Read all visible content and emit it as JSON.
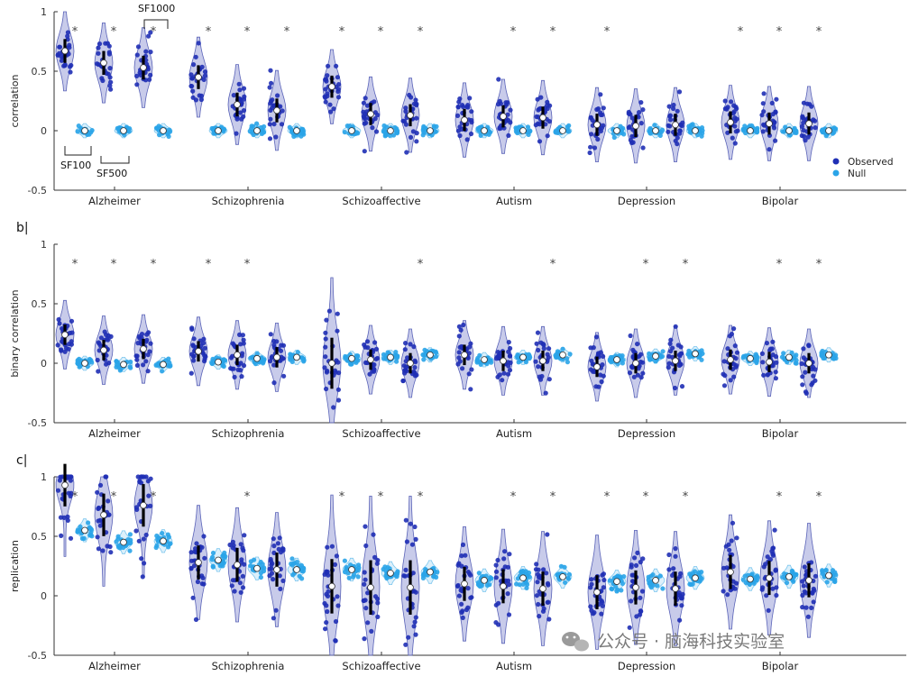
{
  "colors": {
    "observed": "#1f2fb5",
    "null": "#2aa4e8",
    "violin": "#9aa0d8",
    "axis": "#333333"
  },
  "watermark": {
    "text": "公众号 · 脑海科技实验室",
    "icon": "wechat-icon"
  },
  "chart_data": [
    {
      "panel": "a",
      "panel_label": "",
      "type": "violin",
      "ylabel": "correlation",
      "ylim": [
        -0.5,
        1
      ],
      "yticks": [
        "-0.5",
        "0",
        "0.5",
        "1"
      ],
      "categories": [
        "Alzheimer",
        "Schizophrenia",
        "Schizoaffective",
        "Autism",
        "Depression",
        "Bipolar"
      ],
      "legend": {
        "position": "right",
        "entries": [
          {
            "name": "Observed",
            "color": "#1f2fb5"
          },
          {
            "name": "Null",
            "color": "#2aa4e8"
          }
        ]
      },
      "annotations": {
        "sf100": "SF100",
        "sf500": "SF500",
        "sf1000": "SF1000"
      },
      "series": [
        {
          "name": "Observed",
          "values": [
            [
              0.67,
              0.57,
              0.53
            ],
            [
              0.45,
              0.22,
              0.17
            ],
            [
              0.37,
              0.14,
              0.13
            ],
            [
              0.09,
              0.12,
              0.11
            ],
            [
              0.05,
              0.04,
              0.05
            ],
            [
              0.07,
              0.06,
              0.06
            ]
          ]
        },
        {
          "name": "Null",
          "values": [
            [
              0.0,
              0.0,
              0.0
            ],
            [
              0.0,
              0.0,
              0.0
            ],
            [
              0.0,
              0.0,
              0.0
            ],
            [
              0.0,
              0.0,
              0.0
            ],
            [
              0.0,
              0.0,
              0.0
            ],
            [
              0.0,
              0.0,
              0.0
            ]
          ]
        }
      ],
      "significant": [
        [
          true,
          true,
          true
        ],
        [
          true,
          true,
          true
        ],
        [
          true,
          true,
          true
        ],
        [
          false,
          true,
          true
        ],
        [
          true,
          false,
          false
        ],
        [
          true,
          true,
          true
        ]
      ],
      "star_symbol": "*"
    },
    {
      "panel": "b",
      "panel_label": "b|",
      "type": "violin",
      "ylabel": "binary correlation",
      "ylim": [
        -0.5,
        1
      ],
      "yticks": [
        "-0.5",
        "0",
        "0.5",
        "1"
      ],
      "categories": [
        "Alzheimer",
        "Schizophrenia",
        "Schizoaffective",
        "Autism",
        "Depression",
        "Bipolar"
      ],
      "series": [
        {
          "name": "Observed",
          "values": [
            [
              0.24,
              0.11,
              0.12
            ],
            [
              0.1,
              0.07,
              0.05
            ],
            [
              0.0,
              0.03,
              0.0
            ],
            [
              0.07,
              0.02,
              0.02
            ],
            [
              -0.03,
              0.0,
              0.02
            ],
            [
              0.03,
              0.01,
              0.0
            ]
          ]
        },
        {
          "name": "Null",
          "values": [
            [
              0.0,
              -0.01,
              -0.01
            ],
            [
              0.01,
              0.04,
              0.05
            ],
            [
              0.04,
              0.05,
              0.07
            ],
            [
              0.03,
              0.05,
              0.07
            ],
            [
              0.03,
              0.06,
              0.08
            ],
            [
              0.04,
              0.05,
              0.07
            ]
          ]
        }
      ],
      "significant": [
        [
          true,
          true,
          true
        ],
        [
          true,
          true,
          false
        ],
        [
          false,
          false,
          true
        ],
        [
          false,
          false,
          true
        ],
        [
          false,
          true,
          true
        ],
        [
          false,
          true,
          true
        ]
      ],
      "star_symbol": "*"
    },
    {
      "panel": "c",
      "panel_label": "c|",
      "type": "violin",
      "ylabel": "replication",
      "ylim": [
        -0.5,
        1
      ],
      "yticks": [
        "-0.5",
        "0",
        "0.5",
        "1"
      ],
      "categories": [
        "Alzheimer",
        "Schizophrenia",
        "Schizoaffective",
        "Autism",
        "Depression",
        "Bipolar"
      ],
      "series": [
        {
          "name": "Observed",
          "values": [
            [
              0.93,
              0.68,
              0.76
            ],
            [
              0.28,
              0.26,
              0.22
            ],
            [
              0.08,
              0.07,
              0.07
            ],
            [
              0.1,
              0.08,
              0.06
            ],
            [
              0.03,
              0.07,
              0.06
            ],
            [
              0.2,
              0.15,
              0.13
            ]
          ]
        },
        {
          "name": "Null",
          "values": [
            [
              0.55,
              0.45,
              0.46
            ],
            [
              0.3,
              0.23,
              0.22
            ],
            [
              0.22,
              0.19,
              0.2
            ],
            [
              0.13,
              0.15,
              0.16
            ],
            [
              0.12,
              0.13,
              0.15
            ],
            [
              0.14,
              0.16,
              0.17
            ]
          ]
        }
      ],
      "significant": [
        [
          true,
          true,
          true
        ],
        [
          false,
          true,
          false
        ],
        [
          true,
          true,
          true
        ],
        [
          false,
          true,
          true
        ],
        [
          true,
          true,
          true
        ],
        [
          false,
          true,
          true
        ]
      ],
      "star_symbol": "*"
    }
  ]
}
